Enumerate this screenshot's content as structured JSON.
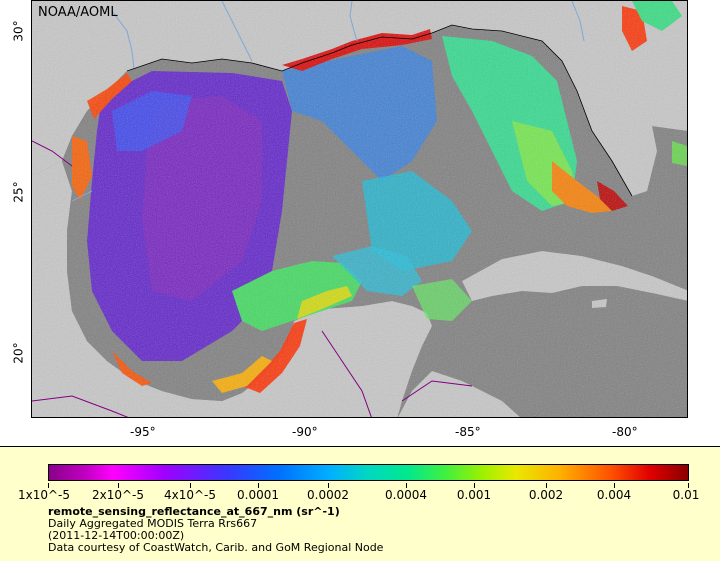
{
  "map": {
    "credit": "NOAA/AOML",
    "lon_labels": [
      "-95°",
      "-90°",
      "-85°",
      "-80°"
    ],
    "lat_labels": [
      "30°",
      "25°",
      "20°"
    ],
    "colors": {
      "land": "#c8c8c8",
      "no_data": "#808080",
      "border": "#800080",
      "river": "#7fa7d9"
    }
  },
  "legend": {
    "ticks": [
      "1x10^-5",
      "2x10^-5",
      "4x10^-5",
      "0.0001",
      "0.0002",
      "0.0004",
      "0.001",
      "0.002",
      "0.004",
      "0.01"
    ],
    "variable": "remote_sensing_reflectance_at_667_nm (sr^-1)",
    "product": "Daily Aggregated MODIS Terra Rrs667",
    "time": "(2011-12-14T00:00:00Z)",
    "source": "Data courtesy of CoastWatch, Carib. and GoM Regional Node"
  }
}
